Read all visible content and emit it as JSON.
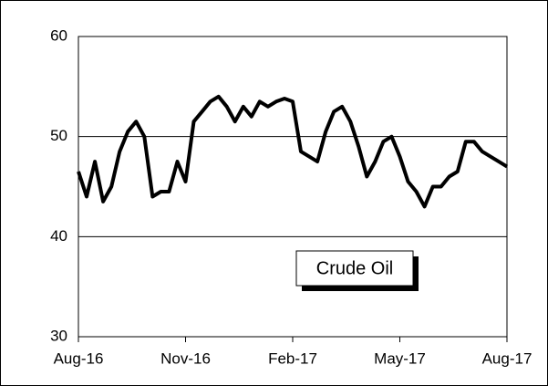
{
  "chart_data": {
    "type": "line",
    "annotation": "Crude Oil",
    "categories": [
      "Aug-16",
      null,
      null,
      null,
      null,
      null,
      null,
      null,
      null,
      null,
      null,
      null,
      null,
      "Nov-16",
      null,
      null,
      null,
      null,
      null,
      null,
      null,
      null,
      null,
      null,
      null,
      null,
      "Feb-17",
      null,
      null,
      null,
      null,
      null,
      null,
      null,
      null,
      null,
      null,
      null,
      null,
      "May-17",
      null,
      null,
      null,
      null,
      null,
      null,
      null,
      null,
      null,
      null,
      null,
      null,
      "Aug-17"
    ],
    "values": [
      46.5,
      44,
      47.5,
      43.5,
      45,
      48.5,
      50.5,
      51.5,
      50,
      44,
      44.5,
      44.5,
      47.5,
      45.5,
      51.5,
      52.5,
      53.5,
      54,
      53,
      51.5,
      53,
      52,
      53.5,
      53,
      53.5,
      53.8,
      53.5,
      48.5,
      48,
      47.5,
      50.5,
      52.5,
      53,
      51.5,
      49,
      46,
      47.5,
      49.5,
      50,
      48,
      45.5,
      44.5,
      43,
      45,
      45,
      46,
      46.5,
      49.5,
      49.5,
      48.5,
      48,
      47.5,
      47
    ],
    "color": "#000000",
    "ylim": [
      30,
      60
    ],
    "yticks": [
      30,
      40,
      50,
      60
    ],
    "grid": true
  }
}
